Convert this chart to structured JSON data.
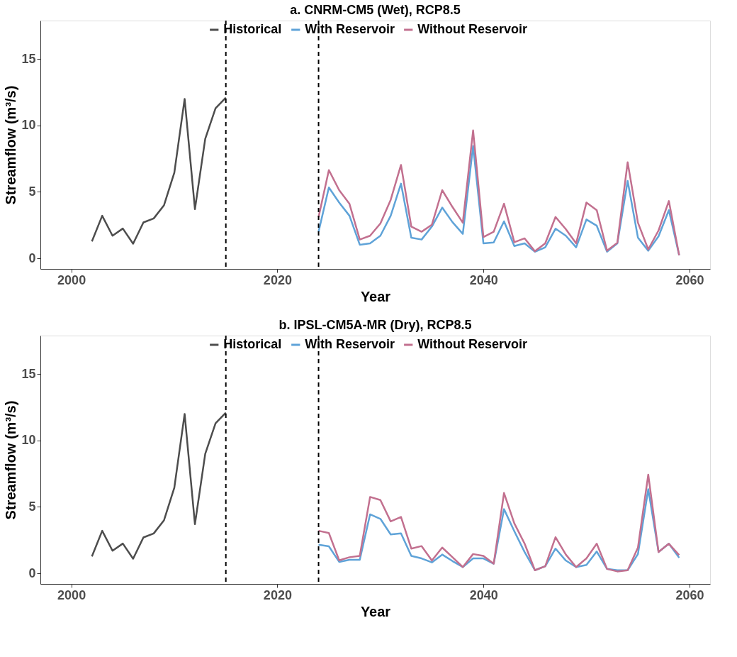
{
  "chart_data": [
    {
      "type": "line",
      "title": "a. CNRM-CM5 (Wet), RCP8.5",
      "xlabel": "Year",
      "ylabel": "Streamflow (m³/s)",
      "xlim": [
        1997,
        2062
      ],
      "ylim": [
        -0.8,
        17.9
      ],
      "xticks": [
        2000,
        2020,
        2040,
        2060
      ],
      "yticks": [
        0,
        5,
        10,
        15
      ],
      "grid": false,
      "legend": "top",
      "marker": "none",
      "line_style": "solid",
      "series": [
        {
          "name": "Historical",
          "color": "#4d4d4d",
          "x": [
            2002,
            2003,
            2004,
            2005,
            2006,
            2007,
            2008,
            2009,
            2010,
            2011,
            2012,
            2013,
            2014,
            2015
          ],
          "values": [
            1.27,
            3.2,
            1.7,
            2.24,
            1.1,
            2.7,
            3.0,
            4.0,
            6.45,
            12.0,
            3.7,
            9.0,
            11.3,
            12.1
          ]
        },
        {
          "name": "With Reservoir",
          "color": "#5fa3d8",
          "x": [
            2024,
            2025,
            2026,
            2027,
            2028,
            2029,
            2030,
            2031,
            2032,
            2033,
            2034,
            2035,
            2036,
            2037,
            2038,
            2039,
            2040,
            2041,
            2042,
            2043,
            2044,
            2045,
            2046,
            2047,
            2048,
            2049,
            2050,
            2051,
            2052,
            2053,
            2054,
            2055,
            2056,
            2057,
            2058,
            2059
          ],
          "values": [
            2.0,
            5.33,
            4.2,
            3.2,
            1.02,
            1.12,
            1.7,
            3.2,
            5.62,
            1.55,
            1.41,
            2.39,
            3.82,
            2.72,
            1.84,
            8.46,
            1.12,
            1.19,
            2.78,
            0.92,
            1.12,
            0.49,
            0.82,
            2.23,
            1.7,
            0.82,
            2.92,
            2.45,
            0.49,
            1.12,
            5.82,
            1.55,
            0.57,
            1.66,
            3.62,
            0.23
          ]
        },
        {
          "name": "Without Reservoir",
          "color": "#c2708f",
          "x": [
            2024,
            2025,
            2026,
            2027,
            2028,
            2029,
            2030,
            2031,
            2032,
            2033,
            2034,
            2035,
            2036,
            2037,
            2038,
            2039,
            2040,
            2041,
            2042,
            2043,
            2044,
            2045,
            2046,
            2047,
            2048,
            2049,
            2050,
            2051,
            2052,
            2053,
            2054,
            2055,
            2056,
            2057,
            2058,
            2059
          ],
          "values": [
            3.1,
            6.64,
            5.13,
            4.1,
            1.41,
            1.7,
            2.62,
            4.4,
            7.03,
            2.39,
            2.0,
            2.53,
            5.13,
            3.86,
            2.68,
            9.63,
            1.6,
            2.0,
            4.11,
            1.21,
            1.5,
            0.53,
            1.12,
            3.11,
            2.19,
            1.12,
            4.2,
            3.62,
            0.57,
            1.17,
            7.23,
            2.68,
            0.67,
            2.1,
            4.31,
            0.23
          ]
        }
      ],
      "ref_lines": [
        {
          "axis": "x",
          "value": 2015,
          "color": "#000000",
          "line_style": "dashed"
        },
        {
          "axis": "x",
          "value": 2024,
          "color": "#000000",
          "line_style": "dashed"
        }
      ]
    },
    {
      "type": "line",
      "title": "b. IPSL-CM5A-MR (Dry), RCP8.5",
      "xlabel": "Year",
      "ylabel": "Streamflow (m³/s)",
      "xlim": [
        1997,
        2062
      ],
      "ylim": [
        -0.8,
        17.9
      ],
      "xticks": [
        2000,
        2020,
        2040,
        2060
      ],
      "yticks": [
        0,
        5,
        10,
        15
      ],
      "grid": false,
      "legend": "top",
      "marker": "none",
      "line_style": "solid",
      "series": [
        {
          "name": "Historical",
          "color": "#4d4d4d",
          "x": [
            2002,
            2003,
            2004,
            2005,
            2006,
            2007,
            2008,
            2009,
            2010,
            2011,
            2012,
            2013,
            2014,
            2015
          ],
          "values": [
            1.27,
            3.2,
            1.7,
            2.24,
            1.1,
            2.7,
            3.0,
            4.0,
            6.45,
            12.0,
            3.7,
            9.0,
            11.3,
            12.1
          ]
        },
        {
          "name": "With Reservoir",
          "color": "#5fa3d8",
          "x": [
            2024,
            2025,
            2026,
            2027,
            2028,
            2029,
            2030,
            2031,
            2032,
            2033,
            2034,
            2035,
            2036,
            2037,
            2038,
            2039,
            2040,
            2041,
            2042,
            2043,
            2044,
            2045,
            2046,
            2047,
            2048,
            2049,
            2050,
            2051,
            2052,
            2053,
            2054,
            2055,
            2056,
            2057,
            2058,
            2059
          ],
          "values": [
            2.15,
            2.03,
            0.86,
            1.02,
            1.02,
            4.44,
            4.1,
            2.93,
            3.01,
            1.31,
            1.12,
            0.82,
            1.41,
            0.92,
            0.47,
            1.12,
            1.12,
            0.72,
            4.83,
            3.17,
            1.6,
            0.23,
            0.53,
            1.86,
            0.96,
            0.47,
            0.63,
            1.64,
            0.33,
            0.23,
            0.23,
            1.45,
            6.33,
            1.6,
            2.23,
            1.17
          ]
        },
        {
          "name": "Without Reservoir",
          "color": "#c2708f",
          "x": [
            2024,
            2025,
            2026,
            2027,
            2028,
            2029,
            2030,
            2031,
            2032,
            2033,
            2034,
            2035,
            2036,
            2037,
            2038,
            2039,
            2040,
            2041,
            2042,
            2043,
            2044,
            2045,
            2046,
            2047,
            2048,
            2049,
            2050,
            2051,
            2052,
            2053,
            2054,
            2055,
            2056,
            2057,
            2058,
            2059
          ],
          "values": [
            3.2,
            3.03,
            0.98,
            1.21,
            1.31,
            5.75,
            5.52,
            3.91,
            4.24,
            1.86,
            2.05,
            0.96,
            1.94,
            1.21,
            0.47,
            1.45,
            1.31,
            0.72,
            6.05,
            3.76,
            2.23,
            0.23,
            0.53,
            2.72,
            1.41,
            0.47,
            1.12,
            2.23,
            0.33,
            0.14,
            0.23,
            1.94,
            7.43,
            1.6,
            2.23,
            1.37
          ]
        }
      ],
      "ref_lines": [
        {
          "axis": "x",
          "value": 2015,
          "color": "#000000",
          "line_style": "dashed"
        },
        {
          "axis": "x",
          "value": 2024,
          "color": "#000000",
          "line_style": "dashed"
        }
      ]
    }
  ]
}
